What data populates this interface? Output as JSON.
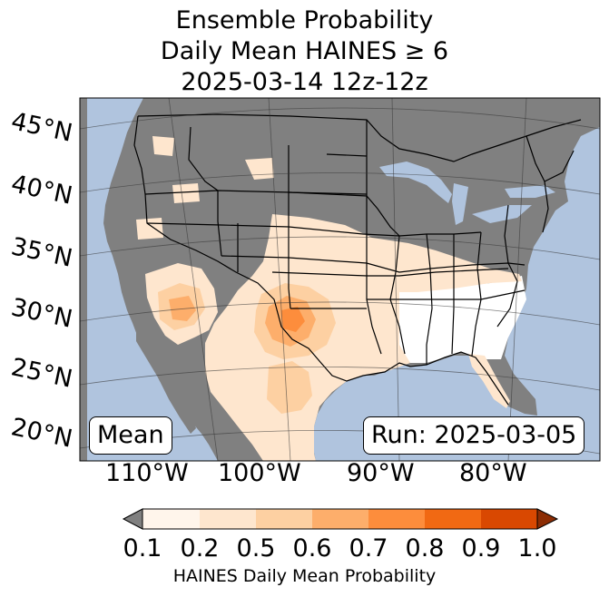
{
  "title": {
    "line1": "Ensemble Probability",
    "line2": "Daily Mean HAINES ≥ 6",
    "line3": "2025-03-14 12z-12z"
  },
  "map": {
    "latitude_labels": [
      "45°N",
      "40°N",
      "35°N",
      "30°N",
      "25°N",
      "20°N"
    ],
    "longitude_labels": [
      "110°W",
      "100°W",
      "90°W",
      "80°W"
    ],
    "statistic_label": "Mean",
    "run_label": "Run: 2025-03-05",
    "colors": {
      "ocean": "#b0c4de",
      "masked_land": "#808080",
      "lt_0_1": "#ffffff"
    }
  },
  "colorbar": {
    "ticks": [
      "0.1",
      "0.2",
      "0.5",
      "0.6",
      "0.7",
      "0.8",
      "0.9",
      "1.0"
    ],
    "colors": [
      "#fff5eb",
      "#fee6ce",
      "#fdd0a2",
      "#fdae6b",
      "#fd8d3c",
      "#f16913",
      "#d94801"
    ],
    "under_color": "#808080",
    "over_color": "#8c2d04",
    "label": "HAINES Daily Mean Probability"
  }
}
